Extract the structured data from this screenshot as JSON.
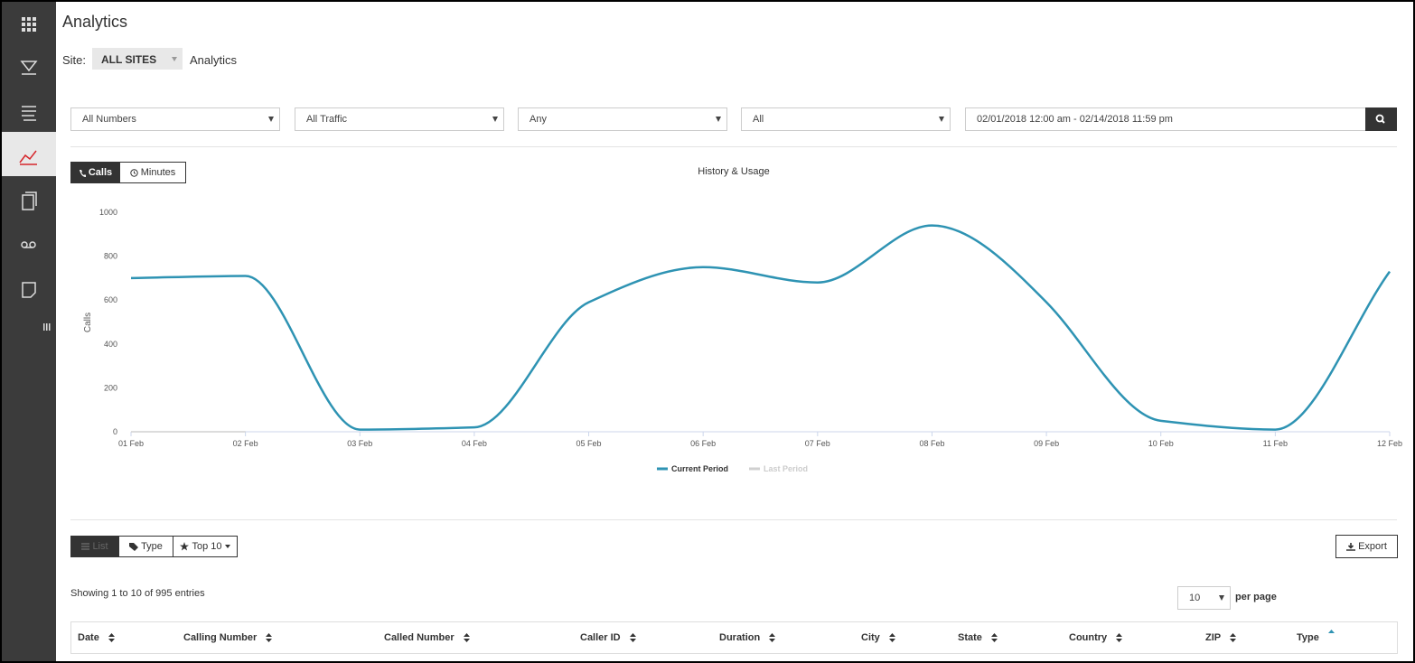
{
  "header": {
    "title": "Analytics",
    "site_label": "Site:",
    "site_value": "ALL SITES",
    "breadcrumb": "Analytics"
  },
  "filters": [
    "All Numbers",
    "All Traffic",
    "Any",
    "All"
  ],
  "date_range": "02/01/2018 12:00 am - 02/14/2018 11:59 pm",
  "chart_toggle": [
    "Calls",
    "Minutes"
  ],
  "chart": {
    "type": "line",
    "title": "History & Usage",
    "y_label": "Calls",
    "categories": [
      "01 Feb",
      "02 Feb",
      "03 Feb",
      "04 Feb",
      "05 Feb",
      "06 Feb",
      "07 Feb",
      "08 Feb",
      "09 Feb",
      "10 Feb",
      "11 Feb",
      "12 Feb"
    ],
    "series": [
      {
        "name": "Current Period",
        "color": "#2e93b3",
        "values": [
          700,
          710,
          10,
          20,
          590,
          750,
          680,
          940,
          590,
          50,
          10,
          730
        ]
      },
      {
        "name": "Last Period",
        "color": "#d0d0d0",
        "values": [
          0,
          0,
          null,
          null,
          null,
          null,
          null,
          null,
          null,
          null,
          null,
          null
        ]
      }
    ],
    "ylim": [
      0,
      1000
    ],
    "yticks": [
      0,
      200,
      400,
      600,
      800,
      1000
    ],
    "grid": false,
    "smooth": true
  },
  "view_toggle": [
    "List",
    "Type",
    "Top 10"
  ],
  "export": "Export",
  "entries_info": "Showing 1 to 10 of 995 entries",
  "per_page_value": "10",
  "per_page_label": "per page",
  "table": {
    "columns": [
      "Date",
      "Calling Number",
      "Called Number",
      "Caller ID",
      "Duration",
      "City",
      "State",
      "Country",
      "ZIP",
      "Type"
    ]
  }
}
